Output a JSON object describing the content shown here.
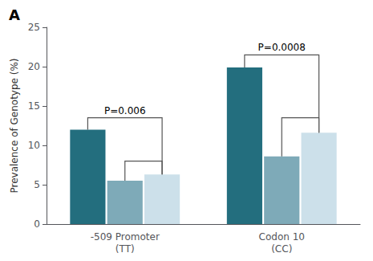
{
  "chart_data": {
    "type": "bar",
    "panel_label": "A",
    "ylabel": "Prevalence of Genotype (%)",
    "categories": [
      "-509 Promoter\n(TT)",
      "Codon 10\n(CC)"
    ],
    "series": [
      {
        "color": "#236e7e",
        "values": [
          12.0,
          19.9
        ]
      },
      {
        "color": "#7eaab8",
        "values": [
          5.5,
          8.6
        ]
      },
      {
        "color": "#cce0ea",
        "values": [
          6.3,
          11.6
        ]
      }
    ],
    "brackets": [
      {
        "category": "-509 Promoter\n(TT)",
        "outer": 13.5,
        "inner": 8.0,
        "label": "P=0.006",
        "color": "#555555"
      },
      {
        "category": "Codon 10\n(CC)",
        "outer": 21.5,
        "inner": 13.5,
        "label": "P=0.0008",
        "color": "#555555"
      }
    ],
    "ylim": [
      0,
      25
    ],
    "yticks": [
      0,
      5,
      10,
      15,
      20,
      25
    ],
    "grid": false
  }
}
